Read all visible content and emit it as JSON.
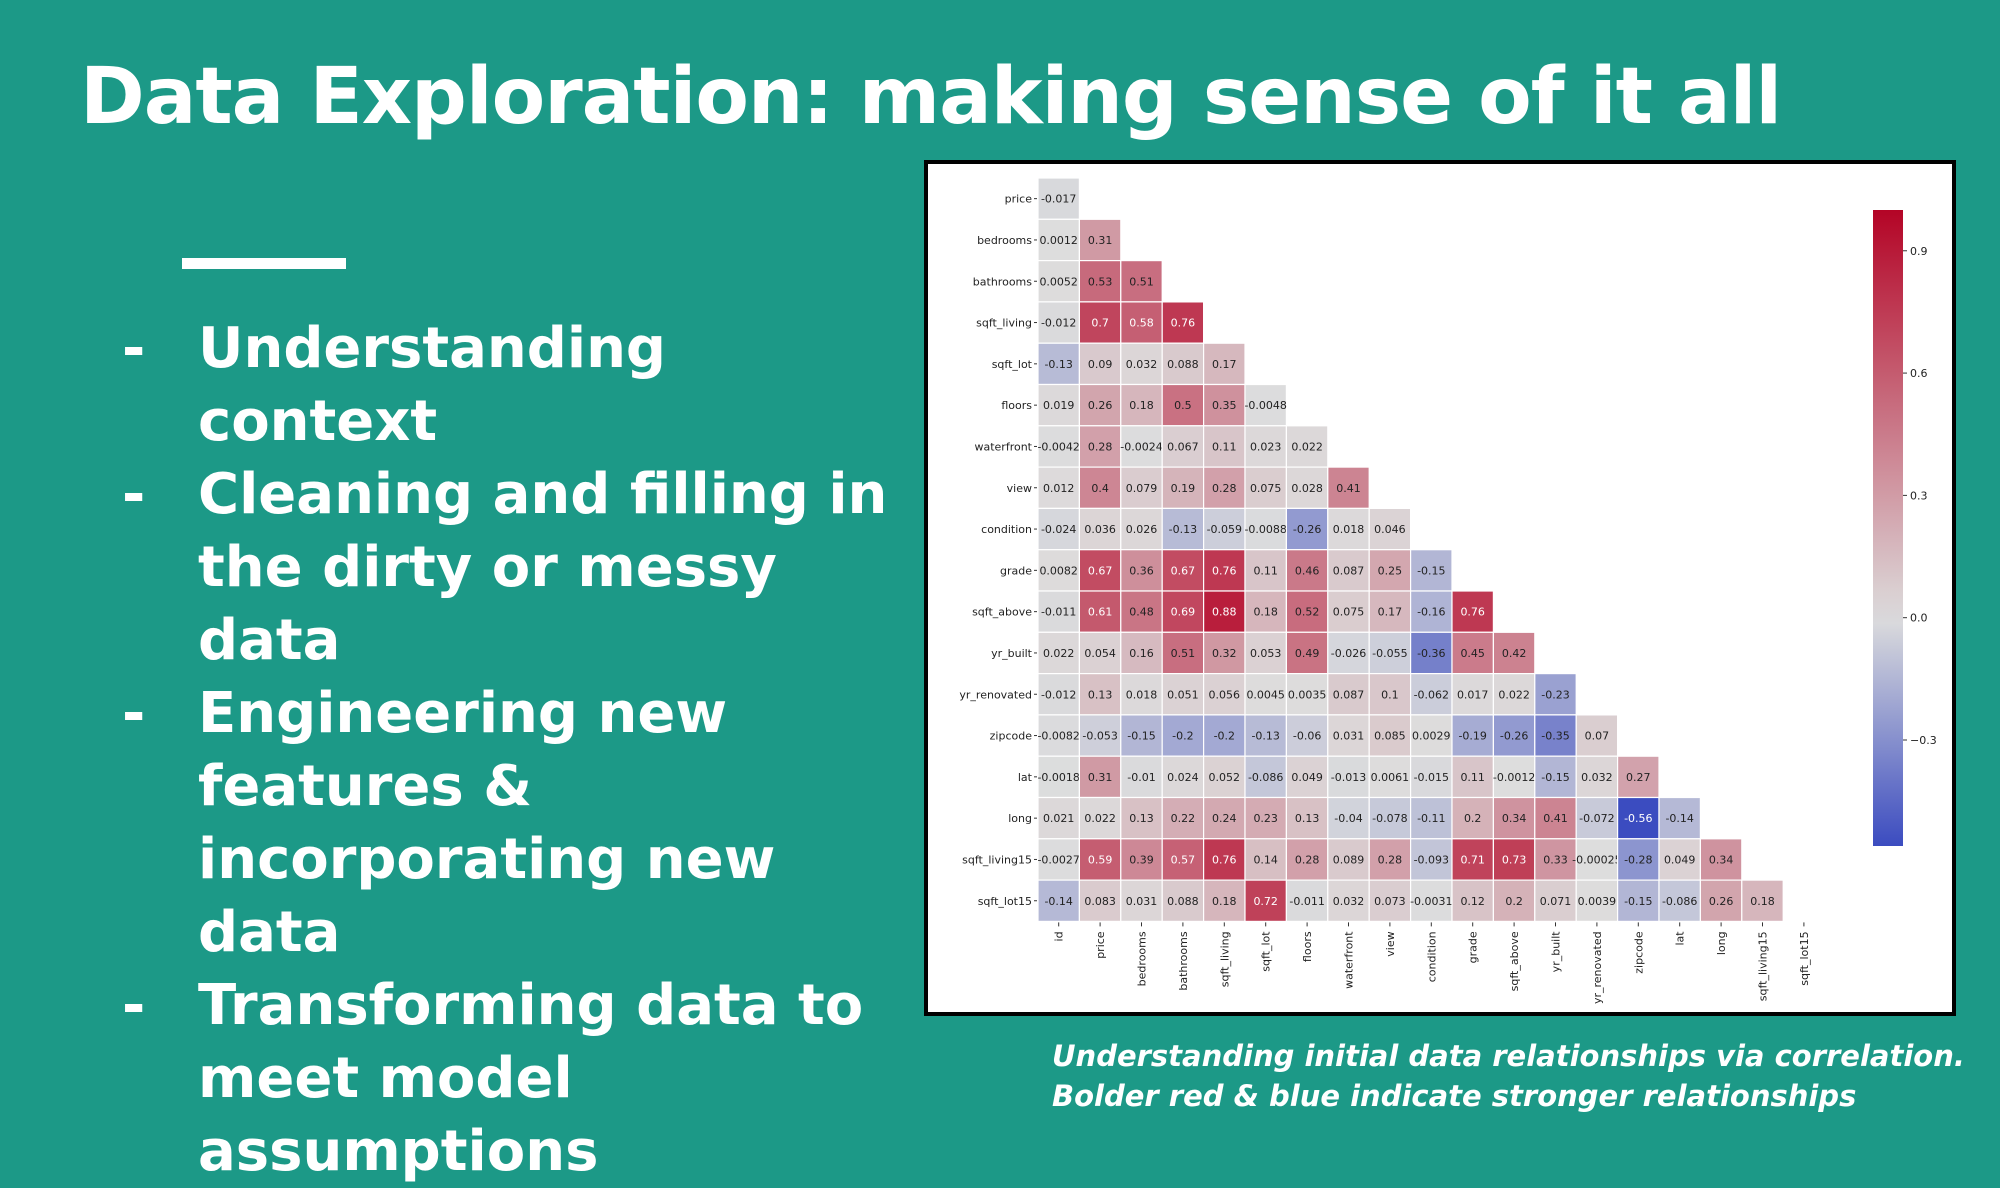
{
  "slide": {
    "title": "Data Exploration: making sense of it all",
    "bullets": [
      {
        "dash": "-",
        "lines": [
          "Understanding context"
        ]
      },
      {
        "dash": "-",
        "lines": [
          "Cleaning and filling in",
          "the dirty or messy data"
        ]
      },
      {
        "dash": "-",
        "lines": [
          "Engineering new",
          "features &",
          "incorporating  new data"
        ]
      },
      {
        "dash": "-",
        "lines": [
          "Transforming data to",
          "meet model",
          "assumptions"
        ]
      }
    ],
    "caption": [
      "Understanding initial data relationships via correlation.",
      "Bolder red & blue indicate stronger relationships"
    ]
  },
  "colors": {
    "background": "#1c9987",
    "text": "#ffffff",
    "negative_strong": "#3b4cc0",
    "neutral": "#dddddd",
    "positive_strong": "#b40426"
  },
  "chart_data": {
    "type": "heatmap",
    "subtype": "lower-triangle correlation matrix",
    "row_labels": [
      "price",
      "bedrooms",
      "bathrooms",
      "sqft_living",
      "sqft_lot",
      "floors",
      "waterfront",
      "view",
      "condition",
      "grade",
      "sqft_above",
      "yr_built",
      "yr_renovated",
      "zipcode",
      "lat",
      "long",
      "sqft_living15",
      "sqft_lot15"
    ],
    "col_labels": [
      "id",
      "price",
      "bedrooms",
      "bathrooms",
      "sqft_living",
      "sqft_lot",
      "floors",
      "waterfront",
      "view",
      "condition",
      "grade",
      "sqft_above",
      "yr_built",
      "yr_renovated",
      "zipcode",
      "lat",
      "long",
      "sqft_living15",
      "sqft_lot15"
    ],
    "values": [
      [
        "-0.017"
      ],
      [
        "0.0012",
        "0.31"
      ],
      [
        "0.0052",
        "0.53",
        "0.51"
      ],
      [
        "-0.012",
        "0.7",
        "0.58",
        "0.76"
      ],
      [
        "-0.13",
        "0.09",
        "0.032",
        "0.088",
        "0.17"
      ],
      [
        "0.019",
        "0.26",
        "0.18",
        "0.5",
        "0.35",
        "-0.0048"
      ],
      [
        "-0.0042",
        "0.28",
        "-0.0024",
        "0.067",
        "0.11",
        "0.023",
        "0.022"
      ],
      [
        "0.012",
        "0.4",
        "0.079",
        "0.19",
        "0.28",
        "0.075",
        "0.028",
        "0.41"
      ],
      [
        "-0.024",
        "0.036",
        "0.026",
        "-0.13",
        "-0.059",
        "-0.0088",
        "-0.26",
        "0.018",
        "0.046"
      ],
      [
        "0.0082",
        "0.67",
        "0.36",
        "0.67",
        "0.76",
        "0.11",
        "0.46",
        "0.087",
        "0.25",
        "-0.15"
      ],
      [
        "-0.011",
        "0.61",
        "0.48",
        "0.69",
        "0.88",
        "0.18",
        "0.52",
        "0.075",
        "0.17",
        "-0.16",
        "0.76"
      ],
      [
        "0.022",
        "0.054",
        "0.16",
        "0.51",
        "0.32",
        "0.053",
        "0.49",
        "-0.026",
        "-0.055",
        "-0.36",
        "0.45",
        "0.42"
      ],
      [
        "-0.012",
        "0.13",
        "0.018",
        "0.051",
        "0.056",
        "0.0045",
        "0.0035",
        "0.087",
        "0.1",
        "-0.062",
        "0.017",
        "0.022",
        "-0.23"
      ],
      [
        "-0.0082",
        "-0.053",
        "-0.15",
        "-0.2",
        "-0.2",
        "-0.13",
        "-0.06",
        "0.031",
        "0.085",
        "0.0029",
        "-0.19",
        "-0.26",
        "-0.35",
        "0.07"
      ],
      [
        "-0.0018",
        "0.31",
        "-0.01",
        "0.024",
        "0.052",
        "-0.086",
        "0.049",
        "-0.013",
        "0.0061",
        "-0.015",
        "0.11",
        "-0.0012",
        "-0.15",
        "0.032",
        "0.27"
      ],
      [
        "0.021",
        "0.022",
        "0.13",
        "0.22",
        "0.24",
        "0.23",
        "0.13",
        "-0.04",
        "-0.078",
        "-0.11",
        "0.2",
        "0.34",
        "0.41",
        "-0.072",
        "-0.56",
        "-0.14"
      ],
      [
        "-0.0027",
        "0.59",
        "0.39",
        "0.57",
        "0.76",
        "0.14",
        "0.28",
        "0.089",
        "0.28",
        "-0.093",
        "0.71",
        "0.73",
        "0.33",
        "-0.00025",
        "-0.28",
        "0.049",
        "0.34"
      ],
      [
        "-0.14",
        "0.083",
        "0.031",
        "0.088",
        "0.18",
        "0.72",
        "-0.011",
        "0.032",
        "0.073",
        "-0.0031",
        "0.12",
        "0.2",
        "0.071",
        "0.0039",
        "-0.15",
        "-0.086",
        "0.26",
        "0.18"
      ]
    ],
    "colorbar": {
      "colormap": "coolwarm",
      "vmin": -0.56,
      "vmax": 1.0,
      "ticks": [
        0.9,
        0.6,
        0.3,
        0.0,
        -0.3
      ],
      "tick_labels": [
        "0.9",
        "0.6",
        "0.3",
        "0.0",
        "−0.3"
      ]
    },
    "grid": true
  }
}
